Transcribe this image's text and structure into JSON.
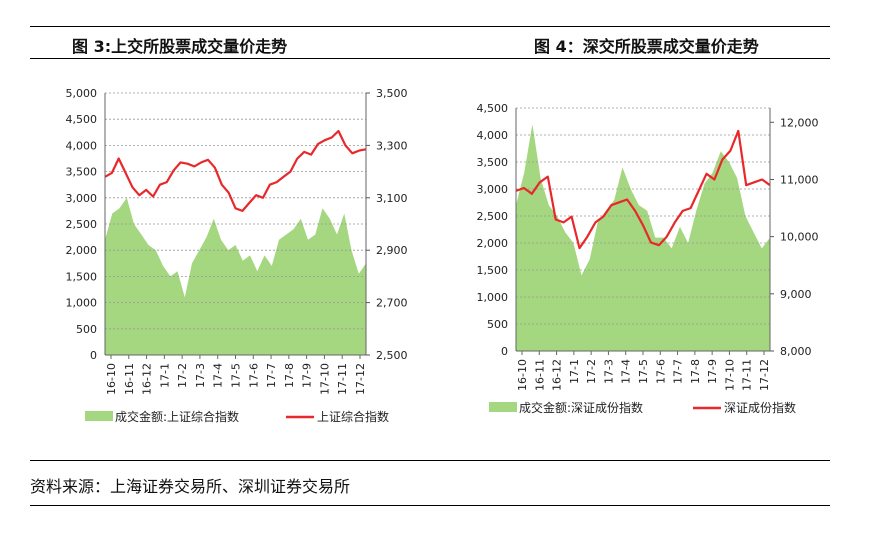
{
  "headings": {
    "fig3": "图 3:上交所股票成交量价走势",
    "fig4": "图 4：深交所股票成交量价走势"
  },
  "source": "资料来源：上海证券交易所、深圳证券交易所",
  "colors": {
    "area": "#a4d77f",
    "line": "#e8282a",
    "grid": "#999999"
  },
  "chart_data": [
    {
      "type": "area+line",
      "title": "图 3:上交所股票成交量价走势",
      "x_ticks": [
        "16-10",
        "16-11",
        "16-12",
        "17-1",
        "17-2",
        "17-3",
        "17-4",
        "17-5",
        "17-6",
        "17-7",
        "17-8",
        "17-9",
        "17-10",
        "17-11",
        "17-12"
      ],
      "y_left": {
        "ylim": [
          0,
          5000
        ],
        "ticks": [
          "0",
          "500",
          "1,000",
          "1,500",
          "2,000",
          "2,500",
          "3,000",
          "3,500",
          "4,000",
          "4,500",
          "5,000"
        ]
      },
      "y_right": {
        "ylim": [
          2500,
          3500
        ],
        "ticks": [
          "2,500",
          "2,700",
          "2,900",
          "3,100",
          "3,300",
          "3,500"
        ]
      },
      "series": [
        {
          "name": "成交金额:上证综合指数",
          "axis": "left",
          "style": "area",
          "values": [
            2200,
            2700,
            2800,
            3000,
            2500,
            2300,
            2100,
            2000,
            1700,
            1500,
            1600,
            1100,
            1750,
            2000,
            2250,
            2600,
            2200,
            2000,
            2100,
            1800,
            1900,
            1600,
            1900,
            1700,
            2200,
            2300,
            2400,
            2600,
            2200,
            2300,
            2800,
            2600,
            2300,
            2700,
            2000,
            1550,
            1750
          ]
        },
        {
          "name": "上证综合指数",
          "axis": "right",
          "style": "line",
          "values": [
            3180,
            3195,
            3250,
            3195,
            3140,
            3110,
            3130,
            3105,
            3150,
            3160,
            3205,
            3235,
            3230,
            3220,
            3235,
            3245,
            3215,
            3150,
            3120,
            3060,
            3050,
            3080,
            3110,
            3100,
            3150,
            3160,
            3180,
            3200,
            3250,
            3275,
            3265,
            3305,
            3320,
            3330,
            3355,
            3300,
            3270,
            3280,
            3285
          ]
        }
      ]
    },
    {
      "type": "area+line",
      "title": "图 4：深交所股票成交量价走势",
      "x_ticks": [
        "16-10",
        "16-11",
        "16-12",
        "17-1",
        "17-2",
        "17-3",
        "17-4",
        "17-5",
        "17-6",
        "17-7",
        "17-8",
        "17-9",
        "17-10",
        "17-11",
        "17-12"
      ],
      "y_left": {
        "ylim": [
          0,
          4500
        ],
        "ticks": [
          "0",
          "500",
          "1,000",
          "1,500",
          "2,000",
          "2,500",
          "3,000",
          "3,500",
          "4,000",
          "4,500"
        ]
      },
      "y_right": {
        "ylim": [
          8000,
          12250
        ],
        "ticks": [
          "8,000",
          "9,000",
          "10,000",
          "11,000",
          "12,000"
        ]
      },
      "series": [
        {
          "name": "成交金额:深证成份指数",
          "axis": "left",
          "style": "area",
          "values": [
            2700,
            3300,
            4200,
            3200,
            2700,
            2500,
            2200,
            2000,
            1400,
            1700,
            2400,
            2600,
            2800,
            3400,
            3000,
            2700,
            2600,
            2100,
            2100,
            1900,
            2300,
            2000,
            2600,
            3100,
            3300,
            3700,
            3500,
            3200,
            2500,
            2200,
            1900,
            2100
          ]
        },
        {
          "name": "深证成份指数",
          "axis": "right",
          "style": "line",
          "values": [
            10800,
            10850,
            10750,
            10950,
            11050,
            10300,
            10250,
            10350,
            9800,
            10000,
            10250,
            10350,
            10550,
            10600,
            10650,
            10450,
            10200,
            9900,
            9850,
            10000,
            10250,
            10450,
            10500,
            10800,
            11100,
            11000,
            11350,
            11500,
            11850,
            10900,
            10950,
            11000,
            10900
          ]
        }
      ]
    }
  ]
}
